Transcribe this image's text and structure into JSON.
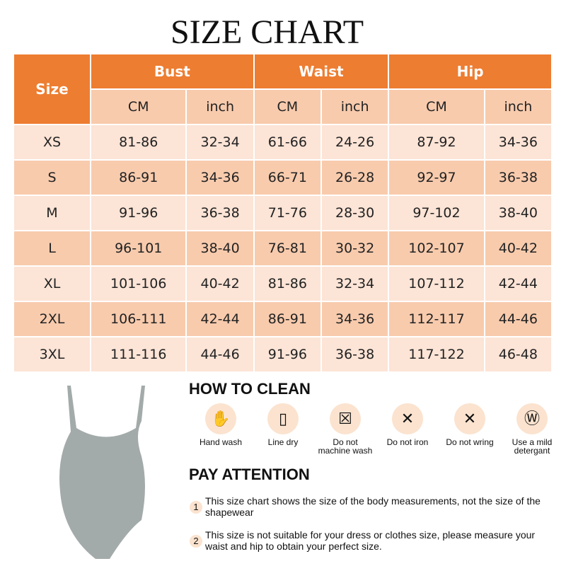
{
  "title": "SIZE CHART",
  "table": {
    "size_header": "Size",
    "groups": [
      "Bust",
      "Waist",
      "Hip"
    ],
    "units": [
      "CM",
      "inch",
      "CM",
      "inch",
      "CM",
      "inch"
    ],
    "rows": [
      [
        "XS",
        "81-86",
        "32-34",
        "61-66",
        "24-26",
        "87-92",
        "34-36"
      ],
      [
        "S",
        "86-91",
        "34-36",
        "66-71",
        "26-28",
        "92-97",
        "36-38"
      ],
      [
        "M",
        "91-96",
        "36-38",
        "71-76",
        "28-30",
        "97-102",
        "38-40"
      ],
      [
        "L",
        "96-101",
        "38-40",
        "76-81",
        "30-32",
        "102-107",
        "40-42"
      ],
      [
        "XL",
        "101-106",
        "40-42",
        "81-86",
        "32-34",
        "107-112",
        "42-44"
      ],
      [
        "2XL",
        "106-111",
        "42-44",
        "86-91",
        "34-36",
        "112-117",
        "44-46"
      ],
      [
        "3XL",
        "111-116",
        "44-46",
        "91-96",
        "36-38",
        "117-122",
        "46-48"
      ]
    ]
  },
  "clean": {
    "heading": "HOW TO CLEAN",
    "items": [
      {
        "icon": "hand-wash-icon",
        "label": "Hand wash"
      },
      {
        "icon": "line-dry-icon",
        "label": "Line dry"
      },
      {
        "icon": "no-machine-wash-icon",
        "label": "Do not machine wash"
      },
      {
        "icon": "no-iron-icon",
        "label": "Do not iron"
      },
      {
        "icon": "no-wring-icon",
        "label": "Do not wring"
      },
      {
        "icon": "mild-detergent-icon",
        "label": "Use a mild detergant"
      }
    ]
  },
  "attention": {
    "heading": "PAY ATTENTION",
    "notes": [
      {
        "num": "1",
        "text": "This size chart shows the size of the body measurements, not the size of the shapewear"
      },
      {
        "num": "2",
        "text": "This size is not suitable for your dress or clothes size, please measure your waist and hip to obtain your perfect size."
      }
    ]
  },
  "colors": {
    "header": "#ED7D31",
    "sub": "#F8CBAD",
    "light": "#FCE4D6",
    "product": "#A3ABAA"
  }
}
